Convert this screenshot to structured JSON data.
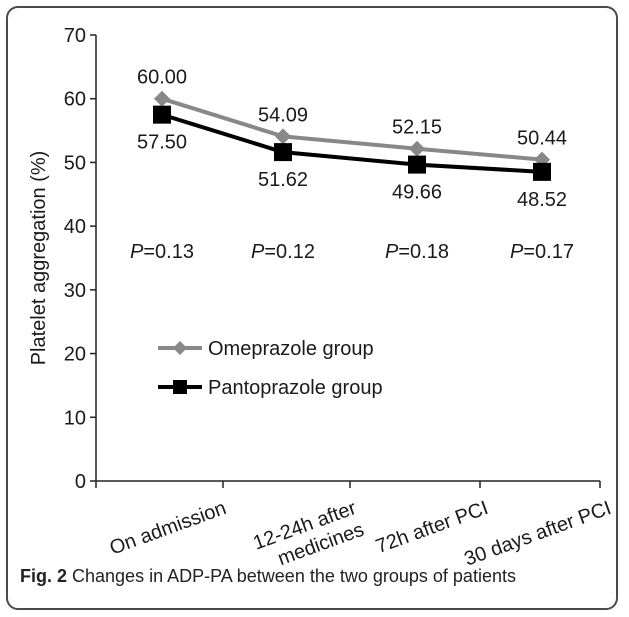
{
  "chart_data": {
    "type": "line",
    "categories": [
      "On admission",
      "12-24h after medicines",
      "72h after PCI",
      "30 days after PCI"
    ],
    "category_lines": [
      [
        "On admission"
      ],
      [
        "12-24h after",
        "medicines"
      ],
      [
        "72h after PCI"
      ],
      [
        "30 days after PCI"
      ]
    ],
    "series": [
      {
        "name": "Omeprazole group",
        "values": [
          60.0,
          54.09,
          52.15,
          50.44
        ],
        "labels": [
          "60.00",
          "54.09",
          "52.15",
          "50.44"
        ],
        "color": "#888888",
        "marker": "diamond"
      },
      {
        "name": "Pantoprazole group",
        "values": [
          57.5,
          51.62,
          49.66,
          48.52
        ],
        "labels": [
          "57.50",
          "51.62",
          "49.66",
          "48.52"
        ],
        "color": "#000000",
        "marker": "square"
      }
    ],
    "p_values": [
      "0.13",
      "0.12",
      "0.18",
      "0.17"
    ],
    "p_prefix": "P",
    "ylabel": "Platelet aggregation (%)",
    "xlabel": "",
    "ylim": [
      0,
      70
    ],
    "yticks": [
      0,
      10,
      20,
      30,
      40,
      50,
      60,
      70
    ],
    "grid": false,
    "legend_position": "middle-left"
  },
  "caption": {
    "label": "Fig. 2",
    "text": " Changes in ADP-PA between the two groups of patients"
  }
}
